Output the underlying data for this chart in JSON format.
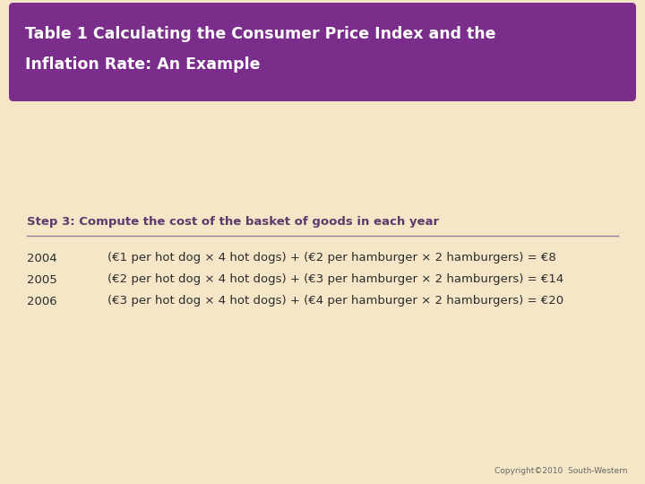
{
  "title_line1": "Table 1 Calculating the Consumer Price Index and the",
  "title_line2": "Inflation Rate: An Example",
  "title_bg_color": "#7B2D8B",
  "title_text_color": "#FFFFFF",
  "bg_color": "#F5E6C8",
  "step_label": "Step 3: Compute the cost of the basket of goods in each year",
  "step_label_color": "#5C3A6B",
  "rows": [
    {
      "year": "2004",
      "formula": "(€1 per hot dog × 4 hot dogs) + (€2 per hamburger × 2 hamburgers) = €8"
    },
    {
      "year": "2005",
      "formula": "(€2 per hot dog × 4 hot dogs) + (€3 per hamburger × 2 hamburgers) = €14"
    },
    {
      "year": "2006",
      "formula": "(€3 per hot dog × 4 hot dogs) + (€4 per hamburger × 2 hamburgers) = €20"
    }
  ],
  "row_text_color": "#2B2B2B",
  "copyright_text": "Copyright©2010  South-Western",
  "copyright_color": "#666666",
  "divider_color": "#9B7B9B",
  "title_fontsize": 12.5,
  "step_fontsize": 9.5,
  "row_fontsize": 9.5
}
